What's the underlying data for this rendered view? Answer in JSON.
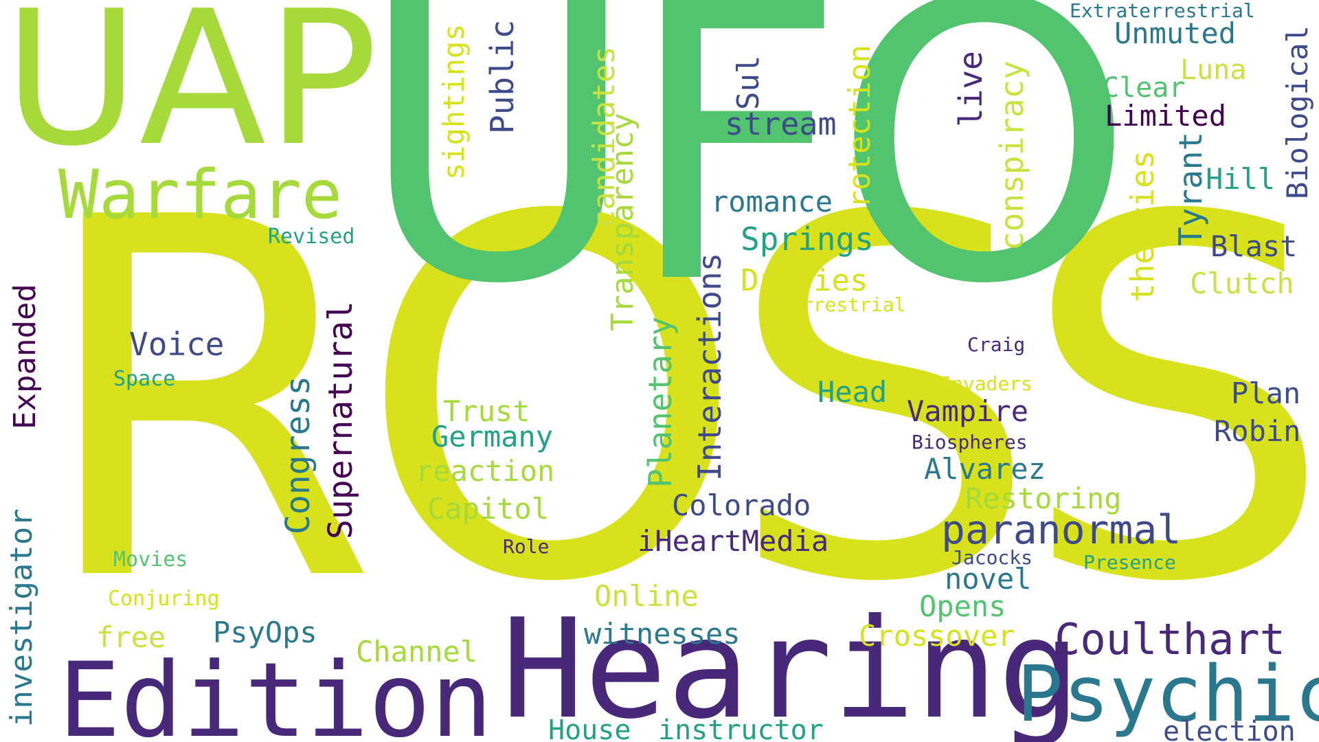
{
  "colors": {
    "yellow": "#d7e11c",
    "lime": "#a6da3b",
    "green": "#52c36e",
    "teal": "#23a186",
    "cyan": "#2a788e",
    "blue": "#3e4a89",
    "indigo": "#482878",
    "dark": "#440154",
    "pale": "#c9e240"
  },
  "words": {
    "ross": "ROSS",
    "ufo": "UFO",
    "uap": "UAP",
    "hearing": "Hearing",
    "edition": "Edition",
    "psychic": "Psychic",
    "warfare": "Warfare",
    "coulthart": "Coulthart",
    "paranormal": "paranormal",
    "voice": "Voice",
    "stream": "stream",
    "romance": "romance",
    "springs": "Springs",
    "diaries": "Diaries",
    "head": "Head",
    "vampire": "Vampire",
    "alvarez": "Alvarez",
    "restoring": "Restoring",
    "colorado": "Colorado",
    "iheartmedia": "iHeartMedia",
    "novel": "novel",
    "opens": "Opens",
    "crossover": "Crossover",
    "witnesses": "witnesses",
    "online": "Online",
    "trust": "Trust",
    "germany": "Germany",
    "reaction": "reaction",
    "capitol": "Capitol",
    "role": "Role",
    "psyops": "PsyOps",
    "free": "free",
    "channel": "Channel",
    "house": "House",
    "instructor": "instructor",
    "election": "election",
    "unmuted": "Unmuted",
    "luna": "Luna",
    "clear": "Clear",
    "limited": "Limited",
    "hill": "Hill",
    "blast": "Blast",
    "clutch": "Clutch",
    "plan": "Plan",
    "robin": "Robin",
    "extraterrestrial": "Extraterrestrial",
    "terrestrial": "Terrestrial",
    "craig": "Craig",
    "invaders": "Invaders",
    "biospheres": "Biospheres",
    "jacocks": "Jacocks",
    "presence": "Presence",
    "revised": "Revised",
    "space": "Space",
    "movies": "Movies",
    "conjuring": "Conjuring",
    "expanded": "Expanded",
    "investigator": "investigator",
    "congress": "Congress",
    "supernatural": "Supernatural",
    "sightings": "sightings",
    "public": "Public",
    "candidates": "candidates",
    "transparency": "Transparency",
    "planetary": "Planetary",
    "interactions": "Interactions",
    "sul": "Sul",
    "protection": "Protection",
    "live": "live",
    "conspiracy": "conspiracy",
    "theories": "theories",
    "tyrant": "Tyrant",
    "biological": "Biological"
  }
}
